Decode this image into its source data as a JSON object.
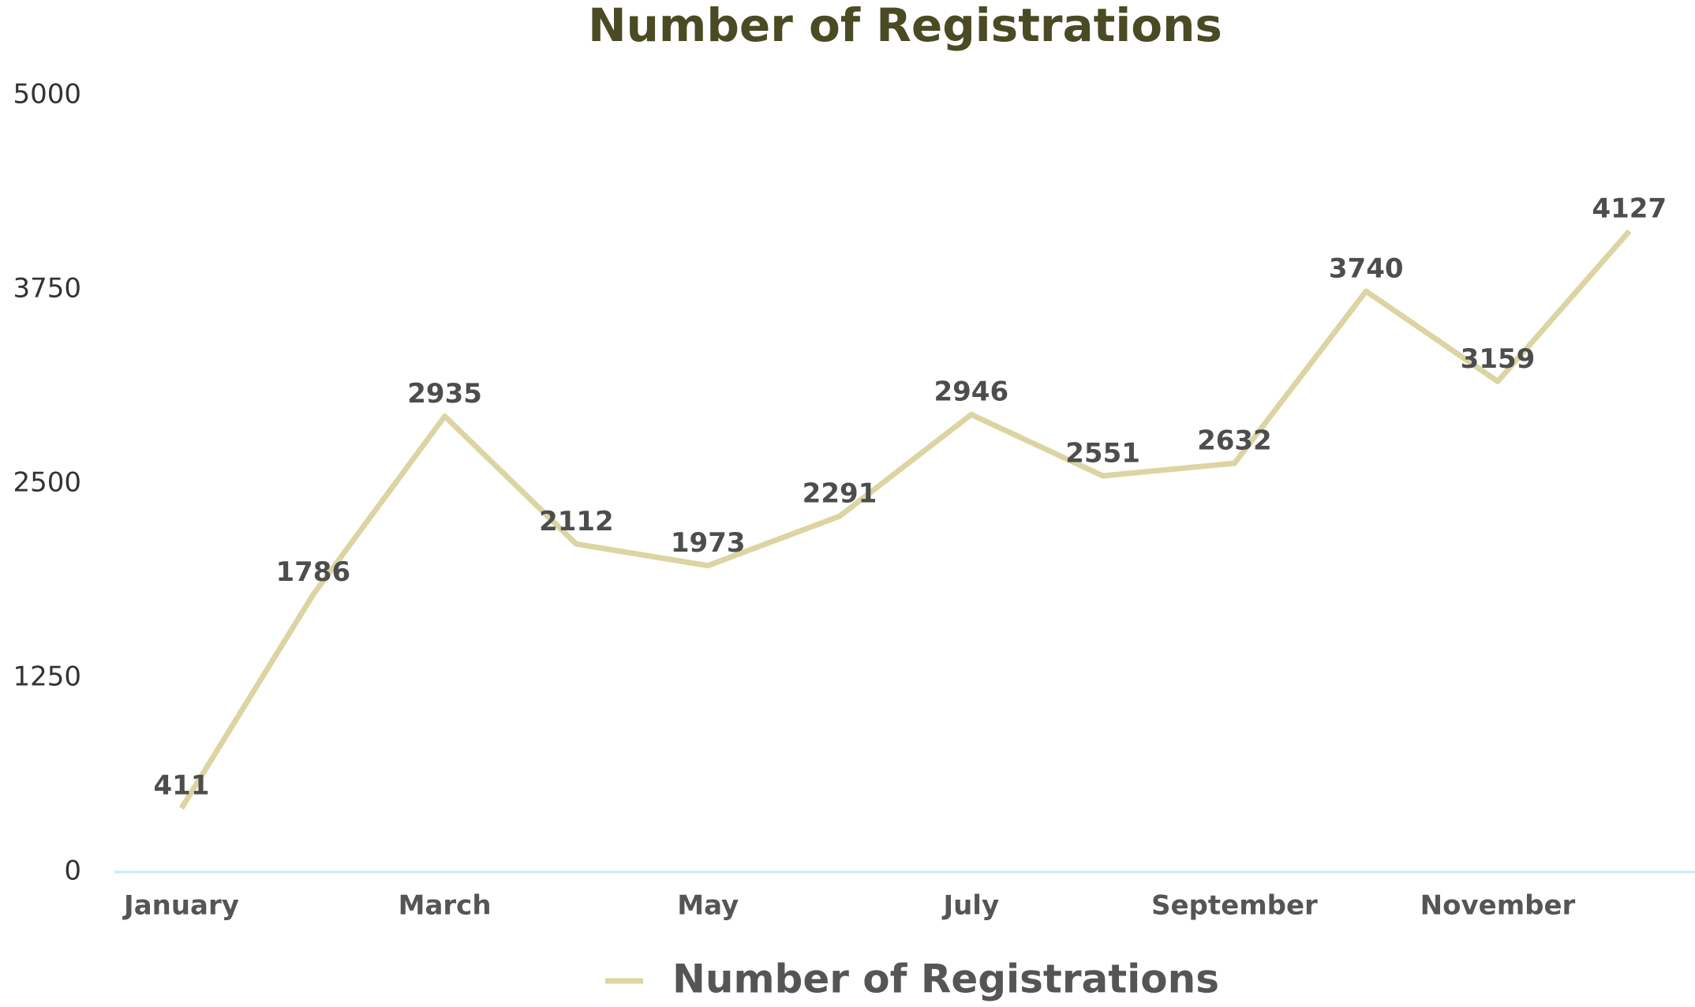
{
  "chart_data": {
    "type": "line",
    "title": "Number of Registrations",
    "categories": [
      "January",
      null,
      "March",
      null,
      "May",
      null,
      "July",
      null,
      "September",
      null,
      "November",
      null
    ],
    "series": [
      {
        "name": "Number of Registrations",
        "color": "#ddd4a3",
        "values": [
          411,
          1786,
          2935,
          2112,
          1973,
          2291,
          2946,
          2551,
          2632,
          3740,
          3159,
          4127
        ]
      }
    ],
    "ylim": [
      0,
      5000
    ],
    "yticks": [
      0,
      1250,
      2500,
      3750,
      5000
    ],
    "grid": false,
    "legend": "bottom"
  }
}
